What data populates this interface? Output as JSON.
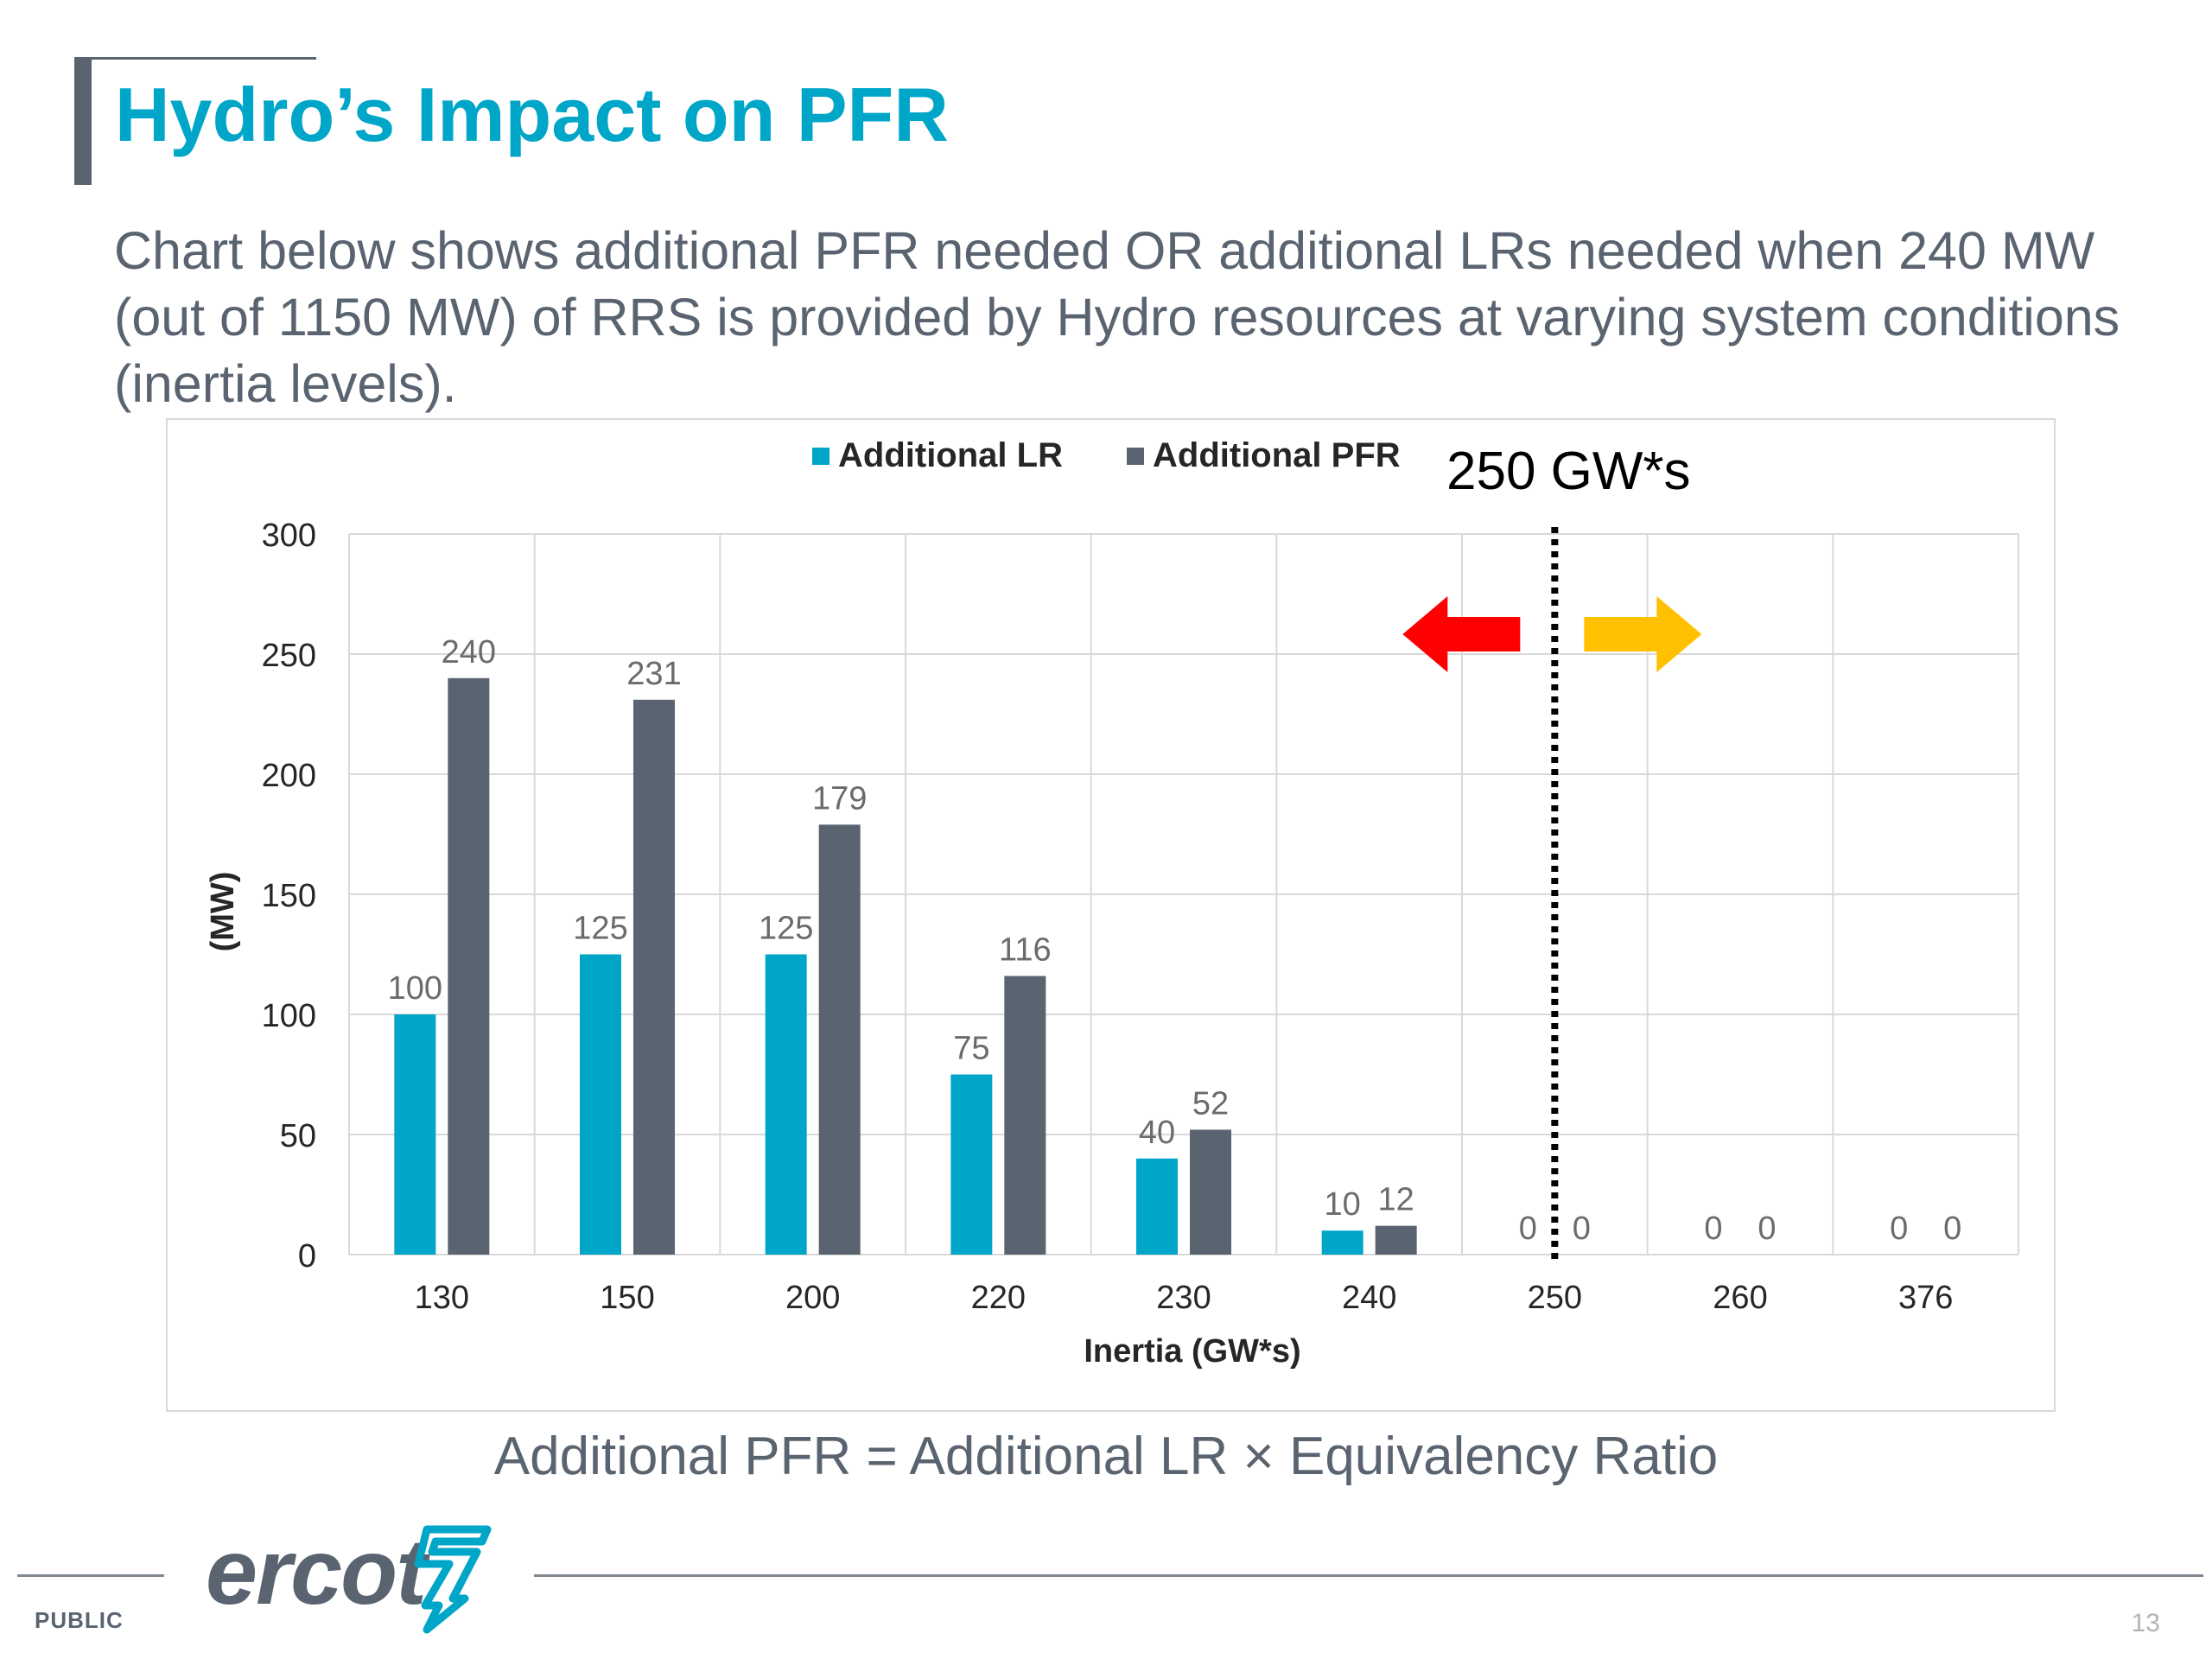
{
  "slide": {
    "title": "Hydro’s Impact on PFR",
    "intro": "Chart below shows additional PFR needed OR additional LRs needed when 240 MW (out of 1150 MW) of RRS is provided by Hydro resources at varying system conditions (inertia levels).",
    "formula": "Additional PFR = Additional LR × Equivalency Ratio",
    "logo_text": "ercot",
    "classification": "PUBLIC",
    "page_number": "13"
  },
  "colors": {
    "title": "#00a6c8",
    "lr": "#00a6c8",
    "pfr": "#5a6470",
    "left_arrow": "#ff0000",
    "right_arrow": "#ffc000"
  },
  "chart_data": {
    "type": "bar",
    "xlabel": "Inertia (GW*s)",
    "ylabel": "(MW)",
    "ylim": [
      0,
      300
    ],
    "yticks": [
      0,
      50,
      100,
      150,
      200,
      250,
      300
    ],
    "categories": [
      "130",
      "150",
      "200",
      "220",
      "230",
      "240",
      "250",
      "260",
      "376"
    ],
    "series": [
      {
        "name": "Additional LR",
        "values": [
          100,
          125,
          125,
          75,
          40,
          10,
          0,
          0,
          0
        ]
      },
      {
        "name": "Additional PFR",
        "values": [
          240,
          231,
          179,
          116,
          52,
          12,
          0,
          0,
          0
        ]
      }
    ],
    "legend_position": "top",
    "grid": true,
    "annotation": {
      "text": "250 GW*s",
      "at_category": "250"
    }
  }
}
